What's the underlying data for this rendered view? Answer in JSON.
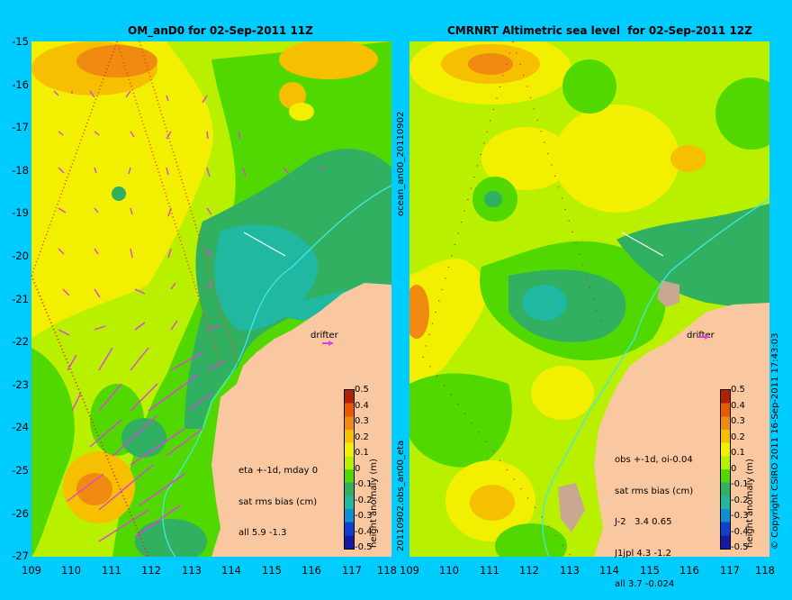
{
  "left_panel": {
    "title": "OM_anD0 for 02-Sep-2011 11Z",
    "side_label": "20110902.obs_an00_eta",
    "info_lines": [
      "eta +-1d, mday 0",
      "sat rms bias (cm)",
      "all 5.9 -1.3"
    ],
    "drifter_label": "drifter"
  },
  "right_panel": {
    "title": "CMRNRT Altimetric sea level  for 02-Sep-2011 12Z",
    "side_label": "ocean_an00_20110902",
    "info_lines": [
      "obs +-1d, oi-0.04",
      "sat rms bias (cm)",
      "J-2   3.4 0.65",
      "J1jpl 4.3 -1.2",
      "all 3.7 -0.024"
    ],
    "drifter_label": "drifter"
  },
  "axes": {
    "lat_ticks": [
      "-15",
      "-16",
      "-17",
      "-18",
      "-19",
      "-20",
      "-21",
      "-22",
      "-23",
      "-24",
      "-25",
      "-26",
      "-27"
    ],
    "lon_ticks": [
      "109",
      "110",
      "111",
      "112",
      "113",
      "114",
      "115",
      "116",
      "117",
      "118"
    ],
    "lat_range": [
      -27,
      -15
    ],
    "lon_range": [
      109,
      118
    ]
  },
  "colorbar": {
    "label": "height anomaly (m)",
    "ticks": [
      "0.5",
      "0.4",
      "0.3",
      "0.2",
      "0.1",
      "0",
      "-0.1",
      "-0.2",
      "-0.3",
      "-0.4",
      "-0.5"
    ],
    "colors": [
      "#b22200",
      "#e85a00",
      "#f08a10",
      "#f6c000",
      "#f2f000",
      "#b8f000",
      "#50d800",
      "#30b060",
      "#20b8a0",
      "#1090d0",
      "#1040d0",
      "#1818a0"
    ]
  },
  "copyright": "© Copyright CSIRO 2011   16-Sep-2011 17:43:03",
  "colors": {
    "background": "#00ccff",
    "land": "#f9c8a0",
    "arrow": "#e040e0",
    "coast_contour": "#40e8e8"
  }
}
